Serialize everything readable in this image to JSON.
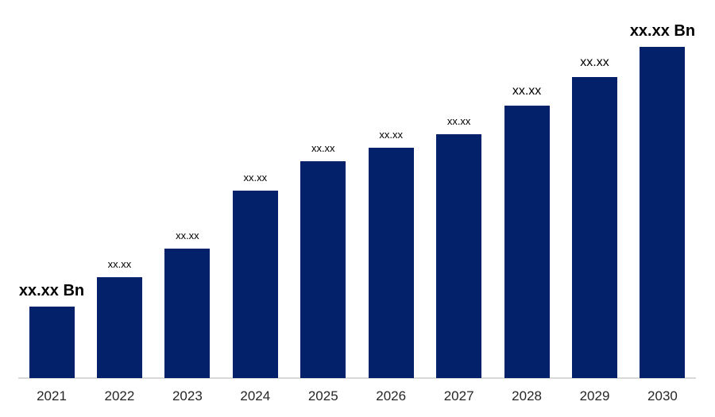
{
  "chart_data": {
    "type": "bar",
    "title": "",
    "categories": [
      "2021",
      "2022",
      "2023",
      "2024",
      "2025",
      "2026",
      "2027",
      "2028",
      "2029",
      "2030"
    ],
    "data_labels": [
      "xx.xx Bn",
      "xx.xx",
      "xx.xx",
      "xx.xx",
      "xx.xx",
      "xx.xx",
      "xx.xx",
      "xx.xx",
      "xx.xx",
      "xx.xx Bn"
    ],
    "label_styles": [
      "boldxl",
      "small",
      "small",
      "small",
      "small",
      "small",
      "small",
      "medium",
      "medium",
      "boldxl"
    ],
    "values_masked": true,
    "unit": "Bn",
    "relative_heights": [
      0.216,
      0.305,
      0.391,
      0.566,
      0.655,
      0.695,
      0.736,
      0.822,
      0.909,
      1.0
    ],
    "ylim": [
      0,
      1
    ],
    "bar_color": "#03216B",
    "axis_line_color": "#D9D9D9",
    "data_label_color": "#000000",
    "tick_label_color": "#262626",
    "background": "#FFFFFF",
    "gridlines": false,
    "legend": "none"
  }
}
